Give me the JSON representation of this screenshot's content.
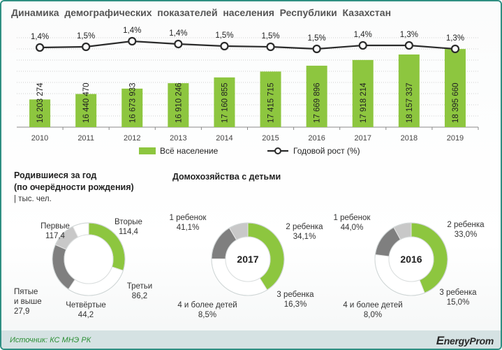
{
  "title": "Динамика  демографических  показателей  населения  Республики  Казахстан",
  "chart_data": [
    {
      "type": "bar",
      "categories": [
        "2010",
        "2011",
        "2012",
        "2013",
        "2014",
        "2015",
        "2016",
        "2017",
        "2018",
        "2019"
      ],
      "series": [
        {
          "name": "Всё население",
          "values": [
            16203274,
            16440470,
            16673933,
            16910246,
            17160855,
            17415715,
            17669896,
            17918214,
            18157337,
            18395660
          ],
          "labels": [
            "16 203 274",
            "16 440 470",
            "16 673 933",
            "16 910 246",
            "17 160 855",
            "17 415 715",
            "17 669 896",
            "17 918 214",
            "18 157 337",
            "18 395 660"
          ]
        },
        {
          "name": "Годовой рост (%)",
          "type": "line",
          "values": [
            1.4,
            1.5,
            1.4,
            1.4,
            1.5,
            1.5,
            1.5,
            1.4,
            1.3,
            1.3
          ],
          "labels": [
            "1,4%",
            "1,5%",
            "1,4%",
            "1,4%",
            "1,5%",
            "1,5%",
            "1,5%",
            "1,4%",
            "1,3%",
            "1,3%"
          ]
        }
      ],
      "legend": [
        "Всё население",
        "Годовой рост (%)"
      ],
      "legend_position": "bottom"
    },
    {
      "type": "pie",
      "title": "Родившиеся  за год",
      "subtitle": "(по очерёдности  рождения)",
      "unit": "| тыс. чел.",
      "slices": [
        {
          "name": "Первые",
          "value": 117.4,
          "label": "117,4",
          "color": "#8dc63f"
        },
        {
          "name": "Вторые",
          "value": 114.4,
          "label": "114,4",
          "color": "#ffffff"
        },
        {
          "name": "Третьи",
          "value": 86.2,
          "label": "86,2",
          "color": "#7f7f7f"
        },
        {
          "name": "Четвёртые",
          "value": 44.2,
          "label": "44,2",
          "color": "#c8c8c8"
        },
        {
          "name": "Пятые\nи выше",
          "value": 27.9,
          "label": "27,9",
          "color": "#ffffff"
        }
      ]
    },
    {
      "type": "pie",
      "title": "Домохозяйства  с детьми",
      "center_label": "2017",
      "slices": [
        {
          "name": "1 ребенок",
          "value": 41.1,
          "label": "41,1%",
          "color": "#8dc63f"
        },
        {
          "name": "2 ребенка",
          "value": 34.1,
          "label": "34,1%",
          "color": "#ffffff"
        },
        {
          "name": "3 ребенка",
          "value": 16.3,
          "label": "16,3%",
          "color": "#7f7f7f"
        },
        {
          "name": "4 и более детей",
          "value": 8.5,
          "label": "8,5%",
          "color": "#c8c8c8"
        }
      ]
    },
    {
      "type": "pie",
      "center_label": "2016",
      "slices": [
        {
          "name": "1 ребенок",
          "value": 44.0,
          "label": "44,0%",
          "color": "#8dc63f"
        },
        {
          "name": "2 ребенка",
          "value": 33.0,
          "label": "33,0%",
          "color": "#ffffff"
        },
        {
          "name": "3 ребенка",
          "value": 15.0,
          "label": "15,0%",
          "color": "#7f7f7f"
        },
        {
          "name": "4 и более детей",
          "value": 8.0,
          "label": "8,0%",
          "color": "#c8c8c8"
        }
      ]
    }
  ],
  "colors": {
    "bar": "#8dc63f",
    "line": "#2b2b2b",
    "grid": "#d0d0d0"
  },
  "footer": {
    "source": "Источник: КС МНЭ РК",
    "brand_e": "E",
    "brand_rest": "nergyProm"
  }
}
